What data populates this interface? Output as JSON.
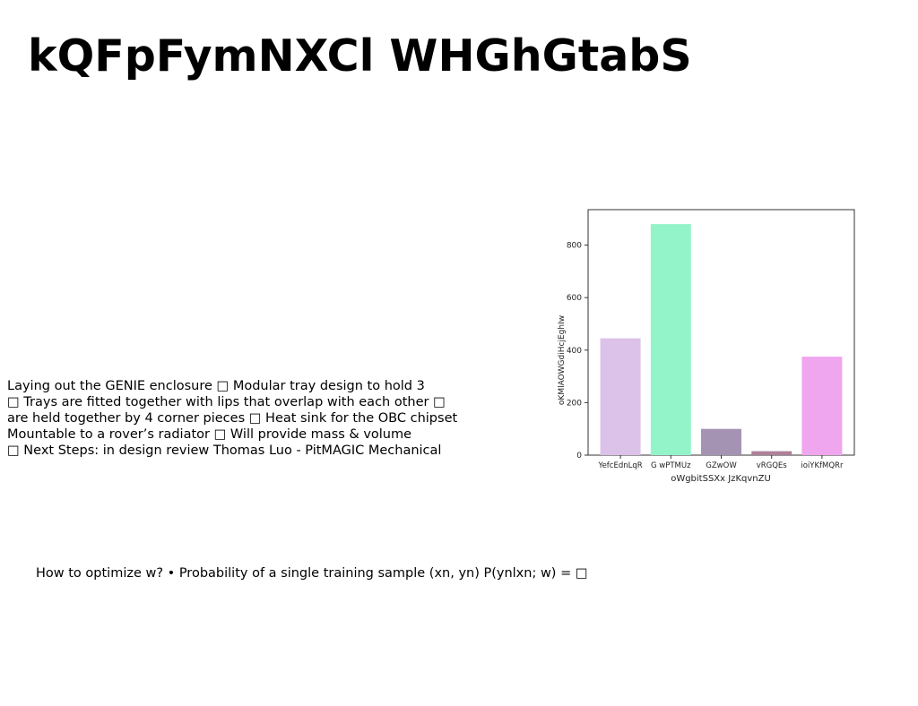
{
  "slide": {
    "title": "kQFpFymNXCl WHGhGtabS",
    "body_lines": [
      "Laying out the GENIE enclosure □ Modular tray design to hold 3",
      "□ Trays are fitted together with lips that overlap with each other □",
      "are held together by 4 corner pieces □ Heat sink for the OBC chipset",
      "Mountable to a rover’s radiator □ Will provide mass & volume",
      "□ Next Steps: in design review Thomas Luo - PitMAGIC Mechanical"
    ],
    "footer": "How to optimize w? • Probability of a single training sample (xn, yn) P(ynlxn; w) = □"
  },
  "chart_data": {
    "type": "bar",
    "categories": [
      "YefcEdnLqR",
      "G wPTMUz",
      "GZwOW",
      "vRGQEs",
      "ioiYKfMQRr"
    ],
    "values": [
      445,
      880,
      100,
      15,
      375
    ],
    "colors": [
      "#dcc1e8",
      "#94f4c9",
      "#a593b4",
      "#b07f99",
      "#f0a5ef"
    ],
    "xlabel": "oWgbitSSXx JzKqvnZU",
    "ylabel": "oKMlAOWGdiHcjEghIw",
    "ylim": [
      0,
      935
    ],
    "yticks": [
      0,
      200,
      400,
      600,
      800
    ],
    "grid": false
  }
}
